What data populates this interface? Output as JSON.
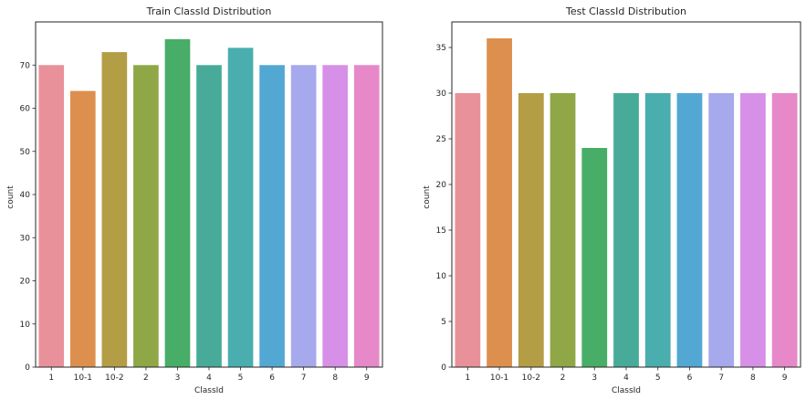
{
  "chart_data": [
    {
      "type": "bar",
      "title": "Train ClassId Distribution",
      "xlabel": "ClassId",
      "ylabel": "count",
      "categories": [
        "1",
        "10-1",
        "10-2",
        "2",
        "3",
        "4",
        "5",
        "6",
        "7",
        "8",
        "9"
      ],
      "values": [
        70,
        64,
        73,
        70,
        76,
        70,
        74,
        70,
        70,
        70,
        70
      ],
      "ylim": [
        0,
        80
      ],
      "yticks": [
        0,
        10,
        20,
        30,
        40,
        50,
        60,
        70
      ],
      "grid": false,
      "colors": [
        "#e8919a",
        "#dd8f4e",
        "#b39d45",
        "#8fa746",
        "#48ad66",
        "#48ab99",
        "#4aadae",
        "#53a8d3",
        "#a6a9ec",
        "#d790e7",
        "#e789c9"
      ]
    },
    {
      "type": "bar",
      "title": "Test ClassId Distribution",
      "xlabel": "ClassId",
      "ylabel": "count",
      "categories": [
        "1",
        "10-1",
        "10-2",
        "2",
        "3",
        "4",
        "5",
        "6",
        "7",
        "8",
        "9"
      ],
      "values": [
        30,
        36,
        30,
        30,
        24,
        30,
        30,
        30,
        30,
        30,
        30
      ],
      "ylim": [
        0,
        37.8
      ],
      "yticks": [
        0,
        5,
        10,
        15,
        20,
        25,
        30,
        35
      ],
      "grid": false,
      "colors": [
        "#e8919a",
        "#dd8f4e",
        "#b39d45",
        "#8fa746",
        "#48ad66",
        "#48ab99",
        "#4aadae",
        "#53a8d3",
        "#a6a9ec",
        "#d790e7",
        "#e789c9"
      ]
    }
  ]
}
